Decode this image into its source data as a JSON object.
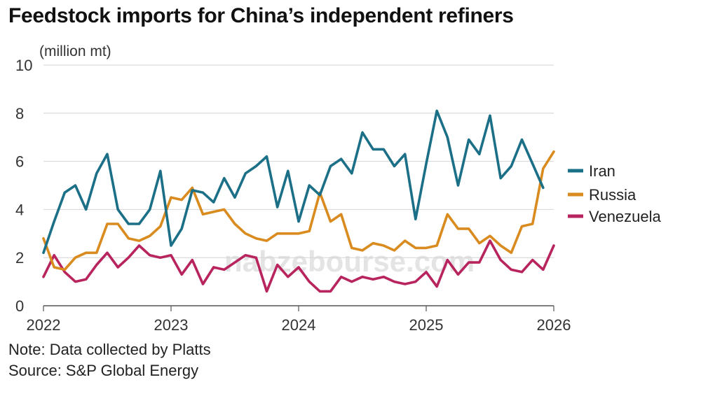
{
  "chart_data": {
    "type": "line",
    "title": "Feedstock imports for China’s independent refiners",
    "ylabel": "(million mt)",
    "xlabel": "",
    "ylim": [
      0,
      10
    ],
    "yticks": [
      0,
      2,
      4,
      6,
      8,
      10
    ],
    "xlim": [
      2022,
      2026
    ],
    "xticks": [
      "2022",
      "2023",
      "2024",
      "2025",
      "2026"
    ],
    "grid": true,
    "legend_position": "right",
    "x": [
      2022.0,
      2022.0833,
      2022.1667,
      2022.25,
      2022.3333,
      2022.4167,
      2022.5,
      2022.5833,
      2022.6667,
      2022.75,
      2022.8333,
      2022.9167,
      2023.0,
      2023.0833,
      2023.1667,
      2023.25,
      2023.3333,
      2023.4167,
      2023.5,
      2023.5833,
      2023.6667,
      2023.75,
      2023.8333,
      2023.9167,
      2024.0,
      2024.0833,
      2024.1667,
      2024.25,
      2024.3333,
      2024.4167,
      2024.5,
      2024.5833,
      2024.6667,
      2024.75,
      2024.8333,
      2024.9167,
      2025.0,
      2025.0833,
      2025.1667,
      2025.25,
      2025.3333,
      2025.4167,
      2025.5,
      2025.5833,
      2025.6667,
      2025.75,
      2025.8333,
      2025.9167,
      2026.0
    ],
    "series": [
      {
        "name": "Iran",
        "color": "#1b6f86",
        "values": [
          2.2,
          3.5,
          4.7,
          5.0,
          4.0,
          5.5,
          6.3,
          4.0,
          3.4,
          3.4,
          4.0,
          5.6,
          2.5,
          3.2,
          4.8,
          4.7,
          4.3,
          5.3,
          4.5,
          5.5,
          5.8,
          6.2,
          4.1,
          5.6,
          3.5,
          5.0,
          4.6,
          5.8,
          6.1,
          5.5,
          7.2,
          6.5,
          6.5,
          5.8,
          6.3,
          3.6,
          5.9,
          8.1,
          7.0,
          5.0,
          6.9,
          6.3,
          7.9,
          5.3,
          5.8,
          6.9,
          5.9,
          4.9,
          null
        ]
      },
      {
        "name": "Russia",
        "color": "#d98b1f",
        "values": [
          2.8,
          1.6,
          1.5,
          2.0,
          2.2,
          2.2,
          3.4,
          3.4,
          2.8,
          2.7,
          2.9,
          3.3,
          4.5,
          4.4,
          4.9,
          3.8,
          3.9,
          4.0,
          3.4,
          3.0,
          2.8,
          2.7,
          3.0,
          3.0,
          3.0,
          3.1,
          4.7,
          3.5,
          3.8,
          2.4,
          2.3,
          2.6,
          2.5,
          2.3,
          2.7,
          2.4,
          2.4,
          2.5,
          3.8,
          3.2,
          3.2,
          2.6,
          2.9,
          2.5,
          2.2,
          3.3,
          3.4,
          5.7,
          6.4
        ]
      },
      {
        "name": "Venezuela",
        "color": "#b8245d",
        "values": [
          1.2,
          2.1,
          1.4,
          1.0,
          1.1,
          1.7,
          2.2,
          1.6,
          2.0,
          2.5,
          2.1,
          2.0,
          2.1,
          1.3,
          1.9,
          0.9,
          1.6,
          1.5,
          1.8,
          2.1,
          2.0,
          0.6,
          1.7,
          1.2,
          1.6,
          1.0,
          0.6,
          0.6,
          1.2,
          1.0,
          1.2,
          1.1,
          1.2,
          1.0,
          0.9,
          1.0,
          1.4,
          0.8,
          1.9,
          1.3,
          1.8,
          1.8,
          2.7,
          1.9,
          1.5,
          1.4,
          1.9,
          1.5,
          2.5
        ]
      }
    ]
  },
  "notes": {
    "line1": "Note: Data collected by Platts",
    "line2": "Source: S&P Global Energy"
  },
  "watermark": "nabzebourse.com"
}
